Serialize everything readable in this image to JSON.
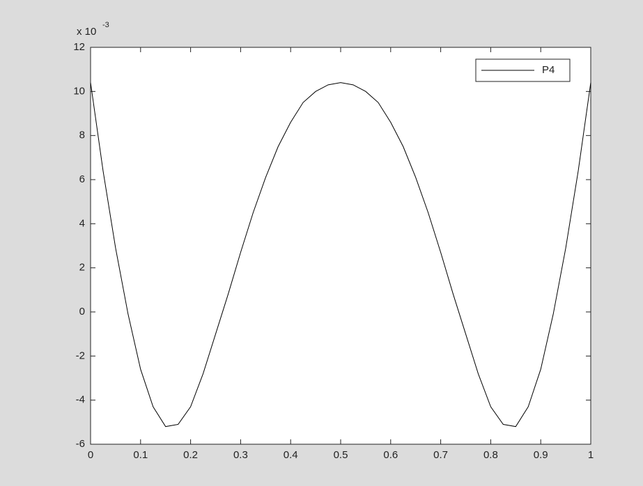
{
  "chart_data": {
    "type": "line",
    "y_multiplier": "x 10",
    "y_exponent": "-3",
    "x": [
      0,
      0.025,
      0.05,
      0.075,
      0.1,
      0.125,
      0.15,
      0.175,
      0.2,
      0.225,
      0.25,
      0.275,
      0.3,
      0.325,
      0.35,
      0.375,
      0.4,
      0.425,
      0.45,
      0.475,
      0.5,
      0.525,
      0.55,
      0.575,
      0.6,
      0.625,
      0.65,
      0.675,
      0.7,
      0.725,
      0.75,
      0.775,
      0.8,
      0.825,
      0.85,
      0.875,
      0.9,
      0.925,
      0.95,
      0.975,
      1
    ],
    "series": [
      {
        "name": "P4",
        "color": "#000000",
        "values": [
          10.4,
          6.4,
          2.9,
          -0.1,
          -2.6,
          -4.3,
          -5.2,
          -5.1,
          -4.3,
          -2.8,
          -1.0,
          0.8,
          2.7,
          4.5,
          6.1,
          7.5,
          8.6,
          9.5,
          10.0,
          10.3,
          10.4,
          10.3,
          10.0,
          9.5,
          8.6,
          7.5,
          6.1,
          4.5,
          2.7,
          0.8,
          -1.0,
          -2.8,
          -4.3,
          -5.1,
          -5.2,
          -4.3,
          -2.6,
          -0.1,
          2.9,
          6.4,
          10.4
        ]
      }
    ],
    "xlim": [
      0,
      1
    ],
    "xticks": [
      0,
      0.1,
      0.2,
      0.3,
      0.4,
      0.5,
      0.6,
      0.7,
      0.8,
      0.9,
      1
    ],
    "ylim": [
      -6,
      12
    ],
    "yticks": [
      -6,
      -4,
      -2,
      0,
      2,
      4,
      6,
      8,
      10,
      12
    ],
    "grid": false,
    "legend": "top-right"
  }
}
